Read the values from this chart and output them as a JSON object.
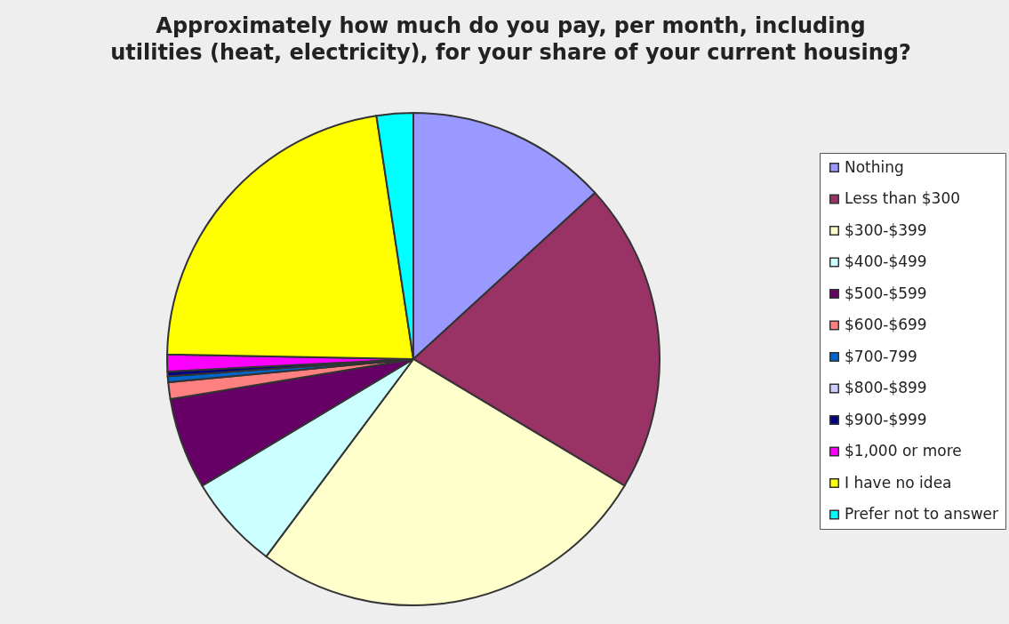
{
  "chart_data": {
    "type": "pie",
    "title": "Approximately how much do you pay, per month, including utilities (heat, electricity), for your share of your current housing?",
    "categories": [
      "Nothing",
      "Less than $300",
      "$300-$399",
      "$400-$499",
      "$500-$599",
      "$600-$699",
      "$700-799",
      "$800-$899",
      "$900-$999",
      "$1,000 or more",
      "I have no idea",
      "Prefer not to answer"
    ],
    "values": [
      13.2,
      20.4,
      26.6,
      6.2,
      6.0,
      1.1,
      0.4,
      0,
      0.3,
      1.1,
      22.3,
      2.4
    ],
    "colors": [
      "#9999ff",
      "#993366",
      "#ffffcc",
      "#ccffff",
      "#660066",
      "#ff8080",
      "#0066cc",
      "#ccccff",
      "#000080",
      "#ff00ff",
      "#ffff00",
      "#00ffff"
    ],
    "legend": "right"
  }
}
